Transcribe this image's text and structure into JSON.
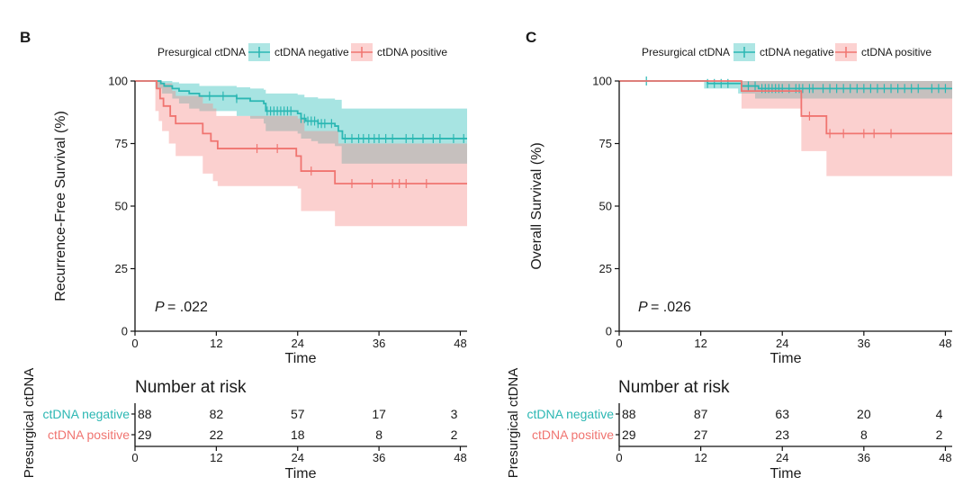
{
  "colors": {
    "negative": "#2bb7b3",
    "positive": "#f07470",
    "axis": "#111111"
  },
  "legend": {
    "title": "Presurgical ctDNA",
    "negative": "ctDNA negative",
    "positive": "ctDNA positive"
  },
  "risk_table": {
    "title": "Number at risk",
    "group_title": "Presurgical ctDNA",
    "xlabel": "Time"
  },
  "chart_data": [
    {
      "panel": "B",
      "type": "line",
      "subtype": "kaplan-meier",
      "ylabel": "Recurrence-Free Survival (%)",
      "xlabel": "Time",
      "xlim": [
        0,
        49
      ],
      "ylim": [
        0,
        100
      ],
      "xticks": [
        0,
        12,
        24,
        36,
        48
      ],
      "yticks": [
        0,
        25,
        50,
        75,
        100
      ],
      "pvalue_label": "P",
      "pvalue_value": "= .022",
      "series": [
        {
          "name": "ctDNA negative",
          "steps": [
            [
              0,
              100
            ],
            [
              3,
              100
            ],
            [
              3.8,
              99
            ],
            [
              4.3,
              98
            ],
            [
              5.5,
              97
            ],
            [
              6.5,
              96
            ],
            [
              8,
              95
            ],
            [
              9.5,
              94
            ],
            [
              15,
              93
            ],
            [
              17,
              92
            ],
            [
              19,
              91
            ],
            [
              19.3,
              88
            ],
            [
              24,
              87
            ],
            [
              24.5,
              85
            ],
            [
              25.2,
              84
            ],
            [
              26,
              84
            ],
            [
              27,
              83
            ],
            [
              29.5,
              82
            ],
            [
              30,
              80
            ],
            [
              30.6,
              77
            ],
            [
              49,
              77
            ]
          ],
          "ci_upper": [
            [
              0,
              100
            ],
            [
              3,
              100
            ],
            [
              4,
              100
            ],
            [
              5.5,
              99.5
            ],
            [
              6.5,
              99
            ],
            [
              8,
              99
            ],
            [
              9.5,
              98
            ],
            [
              15,
              97.5
            ],
            [
              17,
              97
            ],
            [
              19,
              96.5
            ],
            [
              19.3,
              95
            ],
            [
              24,
              94.5
            ],
            [
              25,
              93.5
            ],
            [
              27,
              93
            ],
            [
              29.5,
              92.5
            ],
            [
              30.5,
              89
            ],
            [
              49,
              89
            ]
          ],
          "ci_lower": [
            [
              0,
              100
            ],
            [
              3,
              97
            ],
            [
              4,
              95
            ],
            [
              5.5,
              93
            ],
            [
              6.5,
              91
            ],
            [
              8,
              89
            ],
            [
              9.5,
              88
            ],
            [
              15,
              86
            ],
            [
              17,
              85
            ],
            [
              19,
              83
            ],
            [
              19.3,
              80
            ],
            [
              24,
              79
            ],
            [
              24.5,
              77
            ],
            [
              26,
              76
            ],
            [
              27,
              75
            ],
            [
              29.5,
              74
            ],
            [
              30.5,
              67
            ],
            [
              49,
              67
            ]
          ],
          "censor": [
            11,
            13,
            15,
            19.5,
            20,
            20.5,
            21,
            21.5,
            22,
            22.5,
            23,
            24.5,
            25,
            25.5,
            26,
            26.5,
            27,
            27.5,
            28,
            29,
            31,
            32,
            33,
            33.7,
            34.5,
            35.3,
            36,
            37,
            38,
            40,
            41,
            42.5,
            44,
            45,
            47,
            48.5
          ]
        },
        {
          "name": "ctDNA positive",
          "steps": [
            [
              0,
              100
            ],
            [
              3,
              100
            ],
            [
              3.2,
              97
            ],
            [
              3.7,
              93
            ],
            [
              4.2,
              90
            ],
            [
              5.2,
              86
            ],
            [
              6,
              83
            ],
            [
              10,
              79
            ],
            [
              11.2,
              76
            ],
            [
              12.2,
              73
            ],
            [
              17,
              73
            ],
            [
              23.8,
              70
            ],
            [
              24.5,
              64
            ],
            [
              26.5,
              64
            ],
            [
              29.5,
              59
            ],
            [
              49,
              59
            ]
          ],
          "ci_upper": [
            [
              0,
              100
            ],
            [
              3,
              100
            ],
            [
              4,
              99
            ],
            [
              5.5,
              96
            ],
            [
              6,
              94
            ],
            [
              10,
              91
            ],
            [
              11.5,
              89
            ],
            [
              12,
              86
            ],
            [
              17,
              86
            ],
            [
              24,
              85
            ],
            [
              25,
              80
            ],
            [
              27,
              80
            ],
            [
              30,
              75
            ],
            [
              49,
              75
            ]
          ],
          "ci_lower": [
            [
              0,
              100
            ],
            [
              3,
              88
            ],
            [
              3.5,
              84
            ],
            [
              4,
              80
            ],
            [
              5,
              75
            ],
            [
              6,
              70
            ],
            [
              10,
              63
            ],
            [
              11.5,
              60
            ],
            [
              12.2,
              58
            ],
            [
              24,
              57
            ],
            [
              24.5,
              48
            ],
            [
              27,
              48
            ],
            [
              29.5,
              42
            ],
            [
              49,
              42
            ]
          ],
          "censor": [
            18,
            21,
            26,
            32,
            35,
            38,
            39,
            40,
            43
          ]
        }
      ],
      "risk": {
        "times": [
          0,
          12,
          24,
          36,
          48
        ],
        "negative": [
          88,
          82,
          57,
          17,
          3
        ],
        "positive": [
          29,
          22,
          18,
          8,
          2
        ]
      }
    },
    {
      "panel": "C",
      "type": "line",
      "subtype": "kaplan-meier",
      "ylabel": "Overall Survival (%)",
      "xlabel": "Time",
      "xlim": [
        0,
        49
      ],
      "ylim": [
        0,
        100
      ],
      "xticks": [
        0,
        12,
        24,
        36,
        48
      ],
      "yticks": [
        0,
        25,
        50,
        75,
        100
      ],
      "pvalue_label": "P",
      "pvalue_value": "= .026",
      "series": [
        {
          "name": "ctDNA negative",
          "steps": [
            [
              0,
              100
            ],
            [
              13,
              99
            ],
            [
              18,
              98
            ],
            [
              20.5,
              97
            ],
            [
              49,
              97
            ]
          ],
          "ci_upper": [
            [
              0,
              100
            ],
            [
              49,
              100
            ]
          ],
          "ci_lower": [
            [
              0,
              100
            ],
            [
              12.5,
              97
            ],
            [
              17.5,
              95
            ],
            [
              20,
              93
            ],
            [
              49,
              93
            ]
          ],
          "censor": [
            4,
            13,
            14,
            15,
            16,
            19,
            20,
            21,
            21.5,
            22,
            22.5,
            23,
            23.5,
            24,
            25,
            26,
            26.5,
            27,
            28,
            28.5,
            30,
            31,
            32,
            33,
            34,
            35,
            36,
            37,
            38,
            39,
            40,
            41,
            42,
            43,
            44,
            46,
            47,
            48
          ]
        },
        {
          "name": "ctDNA positive",
          "steps": [
            [
              0,
              100
            ],
            [
              18,
              96
            ],
            [
              26.8,
              86
            ],
            [
              30.5,
              79
            ],
            [
              49,
              79
            ]
          ],
          "ci_upper": [
            [
              0,
              100
            ],
            [
              49,
              100
            ]
          ],
          "ci_lower": [
            [
              0,
              100
            ],
            [
              18,
              89
            ],
            [
              26.8,
              72
            ],
            [
              30.5,
              62
            ],
            [
              49,
              62
            ]
          ],
          "censor": [
            28,
            31,
            33,
            36,
            37.5,
            40
          ]
        }
      ],
      "risk": {
        "times": [
          0,
          12,
          24,
          36,
          48
        ],
        "negative": [
          88,
          87,
          63,
          20,
          4
        ],
        "positive": [
          29,
          27,
          23,
          8,
          2
        ]
      }
    }
  ]
}
